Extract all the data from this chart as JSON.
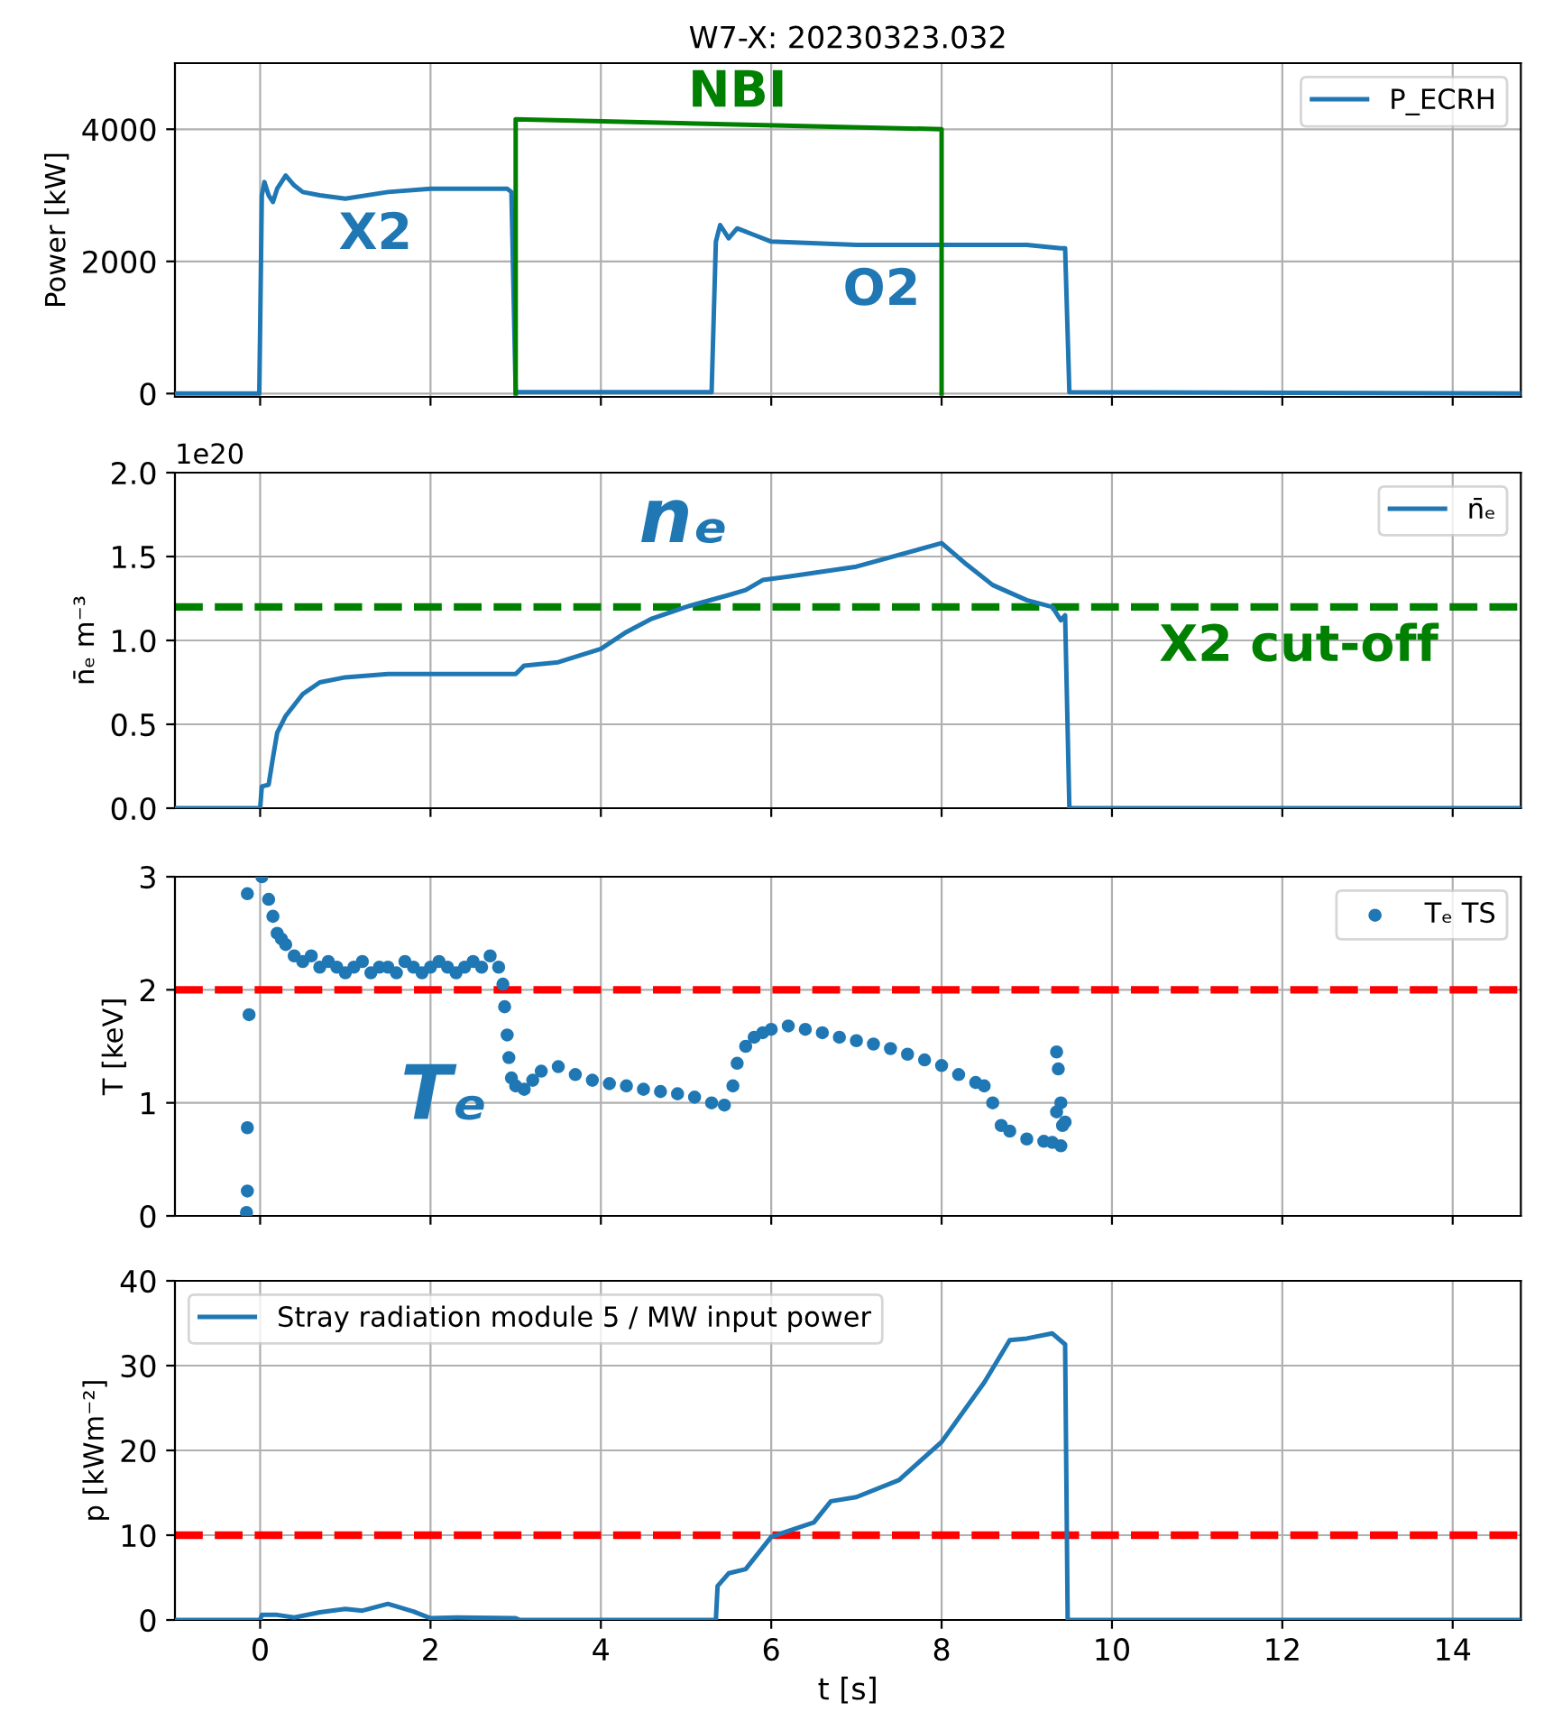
{
  "chart_data": [
    {
      "type": "line",
      "title": "W7-X: 20230323.032",
      "ylabel": "Power [kW]",
      "xlim": [
        -1,
        14.8
      ],
      "xticks": [
        0,
        2,
        4,
        6,
        8,
        10,
        12,
        14
      ],
      "ylim": [
        -50,
        5000
      ],
      "yticks": [
        0,
        2000,
        4000
      ],
      "grid": true,
      "legend": "top right",
      "tick_labels": "y",
      "series": [
        {
          "name": "P_ECRH",
          "color": "#1f77b4",
          "x": [
            -1,
            -0.01,
            0.02,
            0.05,
            0.1,
            0.15,
            0.2,
            0.3,
            0.4,
            0.5,
            0.7,
            1,
            1.5,
            2,
            2.5,
            2.9,
            2.95,
            3.0,
            5.3,
            5.35,
            5.4,
            5.5,
            5.6,
            5.8,
            6.0,
            7,
            8,
            8.5,
            9.0,
            9.4,
            9.45,
            9.5,
            14.8
          ],
          "values": [
            0,
            0,
            3000,
            3200,
            3000,
            2900,
            3100,
            3300,
            3150,
            3050,
            3000,
            2950,
            3050,
            3100,
            3100,
            3100,
            3050,
            20,
            20,
            2300,
            2550,
            2350,
            2500,
            2400,
            2300,
            2250,
            2250,
            2250,
            2250,
            2200,
            2200,
            20,
            0
          ]
        },
        {
          "color": "#008000",
          "x": [
            3,
            3,
            8,
            8
          ],
          "values": [
            0,
            4150,
            4000,
            0
          ]
        }
      ],
      "annotations": [
        "X2",
        "O2",
        "NBI"
      ]
    },
    {
      "type": "line",
      "ylabel": "n̄ₑ m⁻³",
      "xlim": [
        -1,
        14.8
      ],
      "xticks": [
        0,
        2,
        4,
        6,
        8,
        10,
        12,
        14
      ],
      "ylim": [
        0,
        2
      ],
      "yticks": [
        {
          "value": 0,
          "label": "0.0"
        },
        0.5,
        {
          "value": 1,
          "label": "1.0"
        },
        1.5,
        {
          "value": 2,
          "label": "2.0"
        }
      ],
      "grid": true,
      "legend": "top right",
      "tick_labels": "y",
      "series": [
        {
          "name": "n̄ₑ",
          "color": "#1f77b4",
          "x": [
            -1,
            0,
            0.02,
            0.1,
            0.15,
            0.2,
            0.3,
            0.5,
            0.7,
            1,
            1.5,
            2,
            2.9,
            3.0,
            3.1,
            3.5,
            4,
            4.3,
            4.6,
            5,
            5.5,
            5.7,
            5.9,
            6.2,
            7,
            8,
            8.3,
            8.6,
            9,
            9.3,
            9.4,
            9.45,
            9.5,
            14.8
          ],
          "values": [
            0,
            0,
            0.13,
            0.14,
            0.3,
            0.45,
            0.55,
            0.68,
            0.75,
            0.78,
            0.8,
            0.8,
            0.8,
            0.8,
            0.85,
            0.87,
            0.95,
            1.05,
            1.13,
            1.2,
            1.27,
            1.3,
            1.36,
            1.38,
            1.44,
            1.58,
            1.45,
            1.33,
            1.24,
            1.2,
            1.12,
            1.15,
            0,
            0
          ]
        }
      ],
      "ref_lines": [
        {
          "axis": "y",
          "value": 1.2,
          "color": "#008000",
          "line_style": "dashed"
        }
      ],
      "annotations": [
        "1e20",
        "nₑ",
        "X2 cut-off"
      ]
    },
    {
      "type": "scatter",
      "ylabel": "T [keV]",
      "xlim": [
        -1,
        14.8
      ],
      "xticks": [
        0,
        2,
        4,
        6,
        8,
        10,
        12,
        14
      ],
      "ylim": [
        0,
        3
      ],
      "yticks": [
        0,
        1,
        2,
        3
      ],
      "grid": true,
      "legend": "top right",
      "tick_labels": "y",
      "marker": "circle",
      "series": [
        {
          "name": "Tₑ TS",
          "color": "#1f77b4",
          "x": [
            -0.15,
            -0.13,
            -0.15,
            -0.15,
            -0.16,
            0.02,
            0.1,
            0.15,
            0.2,
            0.25,
            0.3,
            0.4,
            0.5,
            0.6,
            0.7,
            0.8,
            0.9,
            1.0,
            1.1,
            1.2,
            1.3,
            1.4,
            1.5,
            1.6,
            1.7,
            1.8,
            1.9,
            2.0,
            2.1,
            2.2,
            2.3,
            2.4,
            2.5,
            2.6,
            2.7,
            2.8,
            2.85,
            2.87,
            2.9,
            2.92,
            2.95,
            3.0,
            3.1,
            3.2,
            3.3,
            3.5,
            3.7,
            3.9,
            4.1,
            4.3,
            4.5,
            4.7,
            4.9,
            5.1,
            5.3,
            5.45,
            5.55,
            5.6,
            5.7,
            5.8,
            5.9,
            6.0,
            6.2,
            6.4,
            6.6,
            6.8,
            7.0,
            7.2,
            7.4,
            7.6,
            7.8,
            8.0,
            8.2,
            8.4,
            8.5,
            8.6,
            8.7,
            8.8,
            9.0,
            9.2,
            9.3,
            9.4,
            9.35,
            9.37,
            9.4,
            9.35,
            9.42,
            9.45
          ],
          "values": [
            2.85,
            1.78,
            0.78,
            0.22,
            0.03,
            3.0,
            2.8,
            2.65,
            2.5,
            2.45,
            2.4,
            2.3,
            2.25,
            2.3,
            2.2,
            2.25,
            2.2,
            2.15,
            2.2,
            2.25,
            2.15,
            2.2,
            2.2,
            2.15,
            2.25,
            2.2,
            2.15,
            2.2,
            2.25,
            2.2,
            2.15,
            2.2,
            2.25,
            2.2,
            2.3,
            2.2,
            2.05,
            1.85,
            1.6,
            1.4,
            1.22,
            1.15,
            1.12,
            1.2,
            1.28,
            1.32,
            1.25,
            1.2,
            1.17,
            1.15,
            1.12,
            1.1,
            1.08,
            1.05,
            1.0,
            0.98,
            1.15,
            1.35,
            1.5,
            1.58,
            1.62,
            1.65,
            1.68,
            1.65,
            1.62,
            1.58,
            1.55,
            1.52,
            1.48,
            1.43,
            1.38,
            1.33,
            1.25,
            1.18,
            1.15,
            1.0,
            0.8,
            0.75,
            0.68,
            0.66,
            0.65,
            0.62,
            1.45,
            1.3,
            1.0,
            0.92,
            0.8,
            0.83
          ]
        }
      ],
      "ref_lines": [
        {
          "axis": "y",
          "value": 2,
          "color": "#ff0000",
          "line_style": "dashed"
        }
      ],
      "annotations": [
        "Tₑ"
      ]
    },
    {
      "type": "line",
      "xlabel": "t [s]",
      "ylabel": "p [kWm⁻²]",
      "xlim": [
        -1,
        14.8
      ],
      "xticks": [
        0,
        2,
        4,
        6,
        8,
        10,
        12,
        14
      ],
      "ylim": [
        0,
        40
      ],
      "yticks": [
        0,
        10,
        20,
        30,
        40
      ],
      "grid": true,
      "legend": "top left",
      "series": [
        {
          "name": "Stray radiation module 5 / MW input power",
          "color": "#1f77b4",
          "x": [
            -1,
            0,
            0.02,
            0.2,
            0.4,
            0.7,
            1,
            1.2,
            1.5,
            1.8,
            2,
            2.3,
            3,
            3.05,
            5.35,
            5.37,
            5.5,
            5.7,
            6.0,
            6.2,
            6.5,
            6.7,
            7,
            7.5,
            8,
            8.5,
            8.8,
            9,
            9.3,
            9.45,
            9.48,
            14.8
          ],
          "values": [
            0,
            0,
            0.6,
            0.6,
            0.3,
            0.9,
            1.3,
            1.1,
            1.9,
            1.0,
            0.2,
            0.3,
            0.2,
            0,
            0,
            4,
            5.5,
            6,
            9.8,
            10.5,
            11.5,
            14,
            14.5,
            16.5,
            21,
            28,
            33,
            33.2,
            33.8,
            32.5,
            0,
            0
          ]
        }
      ],
      "ref_lines": [
        {
          "axis": "y",
          "value": 10,
          "color": "#ff0000",
          "line_style": "dashed"
        }
      ]
    }
  ]
}
